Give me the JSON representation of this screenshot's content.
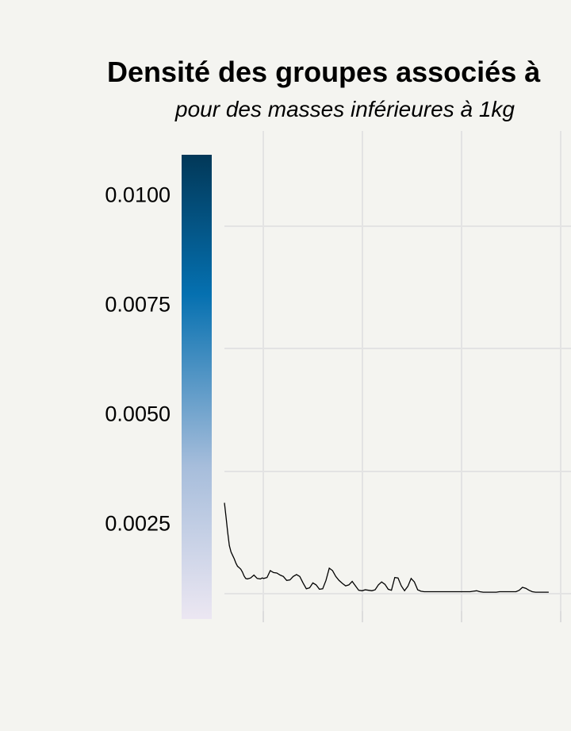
{
  "chart_data": {
    "type": "area",
    "title": "Densité des groupes associés à",
    "subtitle": "pour des masses inférieures à 1kg",
    "xlabel": "",
    "ylabel": "",
    "grid": true,
    "legend": {
      "type": "colorbar",
      "position": "left",
      "ticks": [
        "0.0100",
        "0.0075",
        "0.0050",
        "0.0025"
      ],
      "tick_values": [
        0.01,
        0.0075,
        0.005,
        0.0025
      ],
      "range": [
        0.0003,
        0.0109
      ],
      "colors": [
        "#ece7f2",
        "#a6bddb",
        "#0570b0",
        "#023858"
      ]
    },
    "ylim": [
      0,
      0.0109
    ],
    "xlim": [
      0,
      1000
    ],
    "series": [
      {
        "x": [
          0,
          5,
          10,
          15,
          20,
          25,
          30,
          35,
          40,
          45,
          50,
          55,
          60,
          65,
          70,
          80,
          90,
          100,
          110,
          115,
          120,
          130,
          140,
          150,
          160,
          170,
          180,
          190,
          200,
          210,
          220,
          230,
          240,
          250,
          260,
          270,
          280,
          290,
          300,
          310,
          320,
          330,
          340,
          350,
          360,
          370,
          380,
          390,
          400,
          410,
          420,
          430,
          440,
          450,
          460,
          470,
          480,
          490,
          500,
          510,
          520,
          530,
          540,
          550,
          560,
          570,
          580,
          590,
          600,
          610,
          620,
          630,
          640,
          650,
          660,
          670,
          680,
          690,
          700,
          710,
          720,
          730,
          740,
          750,
          760,
          770,
          780,
          790,
          800,
          810,
          820,
          830,
          840,
          850,
          860,
          870,
          880,
          890,
          900,
          910,
          920,
          930,
          940,
          950,
          960,
          970,
          980,
          990
        ],
        "y": [
          0.00185,
          0.00155,
          0.00125,
          0.00098,
          0.00085,
          0.00078,
          0.00071,
          0.00062,
          0.00056,
          0.00053,
          0.0005,
          0.00044,
          0.00036,
          0.00031,
          0.0003,
          0.00032,
          0.00038,
          0.00031,
          0.0003,
          0.00032,
          0.00031,
          0.00033,
          0.00047,
          0.00043,
          0.00042,
          0.00038,
          0.00035,
          0.00027,
          0.00028,
          0.00035,
          0.00039,
          0.00035,
          0.00022,
          0.0001,
          0.00012,
          0.00022,
          0.00018,
          9e-05,
          0.0001,
          0.00027,
          0.00052,
          0.00047,
          0.00035,
          0.00027,
          0.00021,
          0.00016,
          0.00018,
          0.00025,
          0.00016,
          7e-05,
          6e-05,
          8e-05,
          7e-05,
          6e-05,
          8e-05,
          0.00018,
          0.00024,
          0.00019,
          9e-05,
          7e-05,
          0.00033,
          0.00032,
          0.00016,
          6e-05,
          0.00015,
          0.00031,
          0.00024,
          8e-05,
          5e-05,
          4e-05,
          4e-05,
          4e-05,
          4e-05,
          4e-05,
          4e-05,
          4e-05,
          4e-05,
          4e-05,
          4e-05,
          4e-05,
          4e-05,
          4e-05,
          4e-05,
          4e-05,
          5e-05,
          6e-05,
          4e-05,
          3e-05,
          3e-05,
          3e-05,
          3e-05,
          3e-05,
          4e-05,
          4e-05,
          4e-05,
          4e-05,
          4e-05,
          4e-05,
          7e-05,
          0.00013,
          0.00011,
          7e-05,
          4e-05,
          3e-05,
          3e-05,
          3e-05,
          3e-05,
          3e-05
        ]
      }
    ]
  }
}
